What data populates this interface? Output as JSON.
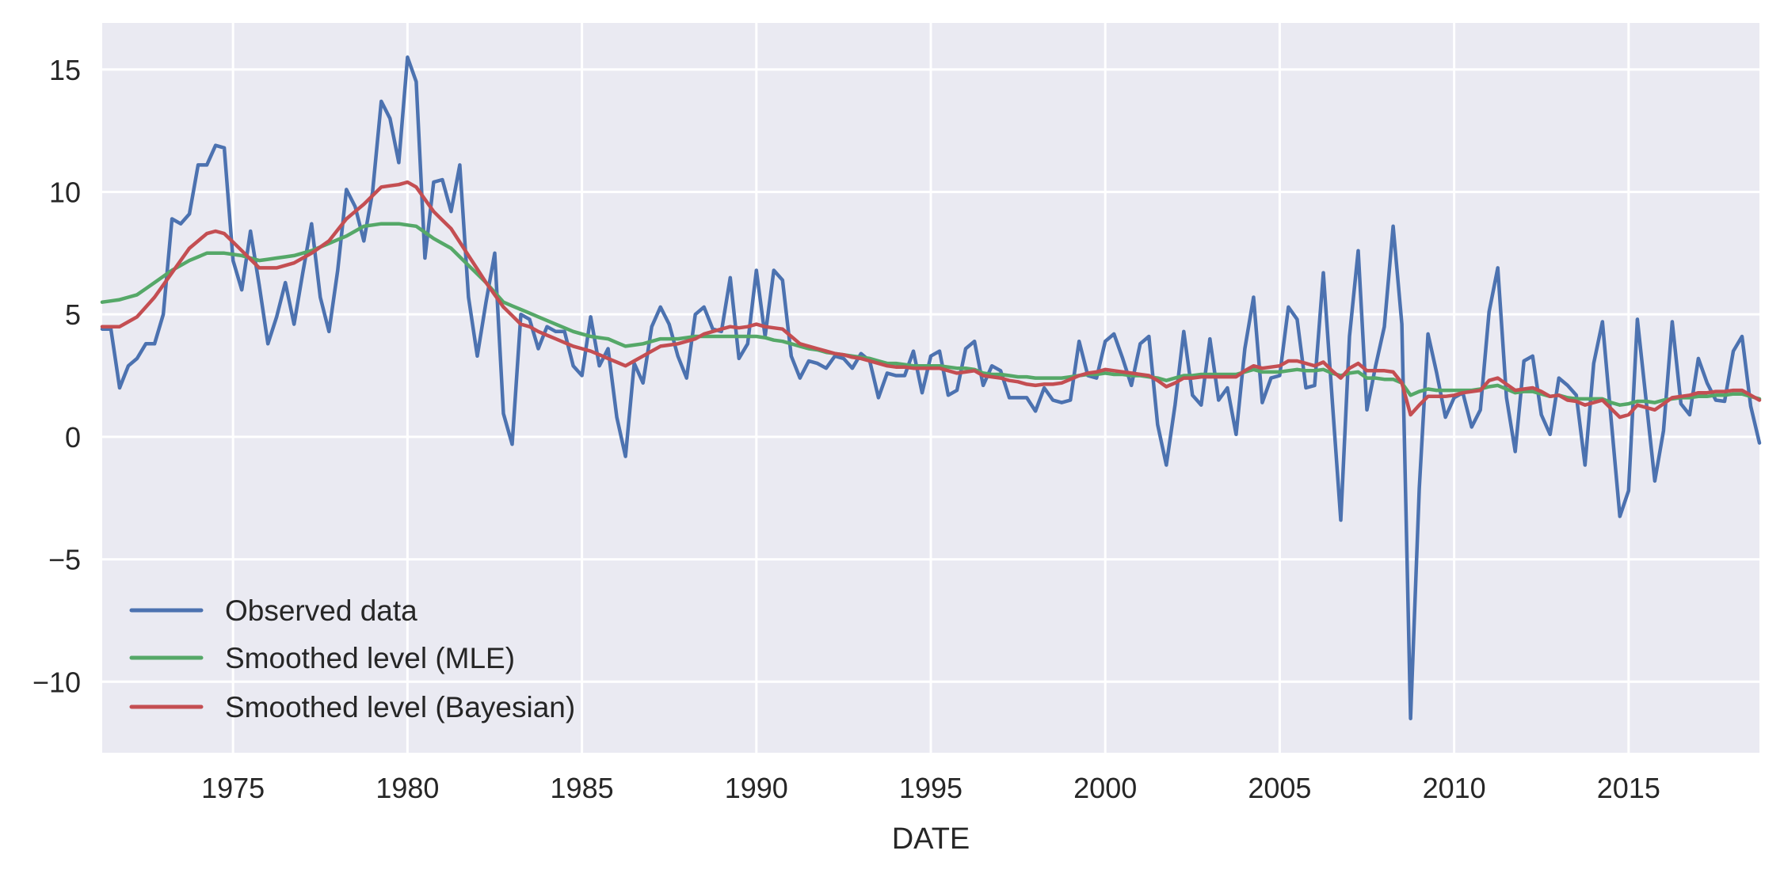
{
  "chart_data": {
    "type": "line",
    "title": "",
    "xlabel": "DATE",
    "ylabel": "",
    "grid": true,
    "background": "#eaeaf2",
    "legend_placement": "lower-left",
    "xlim": [
      "1971Q2",
      "2018Q4"
    ],
    "ylim": [
      -12.9,
      16.9
    ],
    "xticks": [
      1975,
      1980,
      1985,
      1990,
      1995,
      2000,
      2005,
      2010,
      2015
    ],
    "xtick_labels": [
      "1975",
      "1980",
      "1985",
      "1990",
      "1995",
      "2000",
      "2005",
      "2010",
      "2015"
    ],
    "yticks": [
      -10,
      -5,
      0,
      5,
      10,
      15
    ],
    "ytick_labels": [
      "−10",
      "−5",
      "0",
      "5",
      "10",
      "15"
    ],
    "x": [
      "1971Q2",
      "1971Q3",
      "1971Q4",
      "1972Q1",
      "1972Q2",
      "1972Q3",
      "1972Q4",
      "1973Q1",
      "1973Q2",
      "1973Q3",
      "1973Q4",
      "1974Q1",
      "1974Q2",
      "1974Q3",
      "1974Q4",
      "1975Q1",
      "1975Q2",
      "1975Q3",
      "1975Q4",
      "1976Q1",
      "1976Q2",
      "1976Q3",
      "1976Q4",
      "1977Q1",
      "1977Q2",
      "1977Q3",
      "1977Q4",
      "1978Q1",
      "1978Q2",
      "1978Q3",
      "1978Q4",
      "1979Q1",
      "1979Q2",
      "1979Q3",
      "1979Q4",
      "1980Q1",
      "1980Q2",
      "1980Q3",
      "1980Q4",
      "1981Q1",
      "1981Q2",
      "1981Q3",
      "1981Q4",
      "1982Q1",
      "1982Q2",
      "1982Q3",
      "1982Q4",
      "1983Q1",
      "1983Q2",
      "1983Q3",
      "1983Q4",
      "1984Q1",
      "1984Q2",
      "1984Q3",
      "1984Q4",
      "1985Q1",
      "1985Q2",
      "1985Q3",
      "1985Q4",
      "1986Q1",
      "1986Q2",
      "1986Q3",
      "1986Q4",
      "1987Q1",
      "1987Q2",
      "1987Q3",
      "1987Q4",
      "1988Q1",
      "1988Q2",
      "1988Q3",
      "1988Q4",
      "1989Q1",
      "1989Q2",
      "1989Q3",
      "1989Q4",
      "1990Q1",
      "1990Q2",
      "1990Q3",
      "1990Q4",
      "1991Q1",
      "1991Q2",
      "1991Q3",
      "1991Q4",
      "1992Q1",
      "1992Q2",
      "1992Q3",
      "1992Q4",
      "1993Q1",
      "1993Q2",
      "1993Q3",
      "1993Q4",
      "1994Q1",
      "1994Q2",
      "1994Q3",
      "1994Q4",
      "1995Q1",
      "1995Q2",
      "1995Q3",
      "1995Q4",
      "1996Q1",
      "1996Q2",
      "1996Q3",
      "1996Q4",
      "1997Q1",
      "1997Q2",
      "1997Q3",
      "1997Q4",
      "1998Q1",
      "1998Q2",
      "1998Q3",
      "1998Q4",
      "1999Q1",
      "1999Q2",
      "1999Q3",
      "1999Q4",
      "2000Q1",
      "2000Q2",
      "2000Q3",
      "2000Q4",
      "2001Q1",
      "2001Q2",
      "2001Q3",
      "2001Q4",
      "2002Q1",
      "2002Q2",
      "2002Q3",
      "2002Q4",
      "2003Q1",
      "2003Q2",
      "2003Q3",
      "2003Q4",
      "2004Q1",
      "2004Q2",
      "2004Q3",
      "2004Q4",
      "2005Q1",
      "2005Q2",
      "2005Q3",
      "2005Q4",
      "2006Q1",
      "2006Q2",
      "2006Q3",
      "2006Q4",
      "2007Q1",
      "2007Q2",
      "2007Q3",
      "2007Q4",
      "2008Q1",
      "2008Q2",
      "2008Q3",
      "2008Q4",
      "2009Q1",
      "2009Q2",
      "2009Q3",
      "2009Q4",
      "2010Q1",
      "2010Q2",
      "2010Q3",
      "2010Q4",
      "2011Q1",
      "2011Q2",
      "2011Q3",
      "2011Q4",
      "2012Q1",
      "2012Q2",
      "2012Q3",
      "2012Q4",
      "2013Q1",
      "2013Q2",
      "2013Q3",
      "2013Q4",
      "2014Q1",
      "2014Q2",
      "2014Q3",
      "2014Q4",
      "2015Q1",
      "2015Q2",
      "2015Q3",
      "2015Q4",
      "2016Q1",
      "2016Q2",
      "2016Q3",
      "2016Q4",
      "2017Q1",
      "2017Q2",
      "2017Q3",
      "2017Q4",
      "2018Q1",
      "2018Q2",
      "2018Q3",
      "2018Q4"
    ],
    "series": [
      {
        "name": "Observed data",
        "color": "#4c72b0",
        "values": [
          4.4,
          4.4,
          2.0,
          2.9,
          3.2,
          3.8,
          3.8,
          5.0,
          8.9,
          8.7,
          9.1,
          11.1,
          11.1,
          11.9,
          11.8,
          7.2,
          6.0,
          8.4,
          6.2,
          3.8,
          4.9,
          6.3,
          4.6,
          6.7,
          8.7,
          5.7,
          4.3,
          6.8,
          10.1,
          9.4,
          8.0,
          10.0,
          13.7,
          13.0,
          11.2,
          15.5,
          14.5,
          7.3,
          10.4,
          10.5,
          9.2,
          11.1,
          5.7,
          3.3,
          5.5,
          7.5,
          0.95,
          -0.3,
          5.0,
          4.8,
          3.6,
          4.5,
          4.3,
          4.3,
          2.9,
          2.5,
          4.9,
          2.9,
          3.6,
          0.8,
          -0.8,
          3.0,
          2.2,
          4.5,
          5.3,
          4.6,
          3.3,
          2.4,
          5.0,
          5.3,
          4.4,
          4.3,
          6.5,
          3.2,
          3.8,
          6.8,
          4.1,
          6.8,
          6.4,
          3.3,
          2.4,
          3.1,
          3.0,
          2.8,
          3.3,
          3.2,
          2.8,
          3.4,
          3.1,
          1.6,
          2.6,
          2.5,
          2.5,
          3.5,
          1.8,
          3.3,
          3.5,
          1.7,
          1.9,
          3.6,
          3.9,
          2.1,
          2.9,
          2.7,
          1.6,
          1.6,
          1.6,
          1.05,
          2.0,
          1.5,
          1.4,
          1.5,
          3.9,
          2.5,
          2.4,
          3.9,
          4.2,
          3.2,
          2.1,
          3.8,
          4.1,
          0.5,
          -1.15,
          1.3,
          4.3,
          1.7,
          1.3,
          4.0,
          1.5,
          2.0,
          0.1,
          3.6,
          5.7,
          1.4,
          2.4,
          2.5,
          5.3,
          4.8,
          2.0,
          2.1,
          6.7,
          1.6,
          -3.4,
          4.1,
          7.6,
          1.1,
          2.9,
          4.5,
          8.6,
          4.6,
          -11.5,
          -2.1,
          4.2,
          2.6,
          0.8,
          1.6,
          1.8,
          0.4,
          1.1,
          5.1,
          6.9,
          1.6,
          -0.6,
          3.1,
          3.3,
          0.9,
          0.1,
          2.4,
          2.1,
          1.7,
          -1.15,
          3.0,
          4.7,
          0.7,
          -3.25,
          -2.2,
          4.8,
          1.5,
          -1.8,
          0.25,
          4.7,
          1.35,
          0.9,
          3.2,
          2.2,
          1.5,
          1.45,
          3.5,
          4.1,
          1.25,
          -0.25
        ]
      },
      {
        "name": "Smoothed level (MLE)",
        "color": "#55a868",
        "values": [
          5.5,
          5.55,
          5.6,
          5.7,
          5.8,
          6.05,
          6.3,
          6.55,
          6.8,
          7.0,
          7.2,
          7.35,
          7.5,
          7.5,
          7.5,
          7.45,
          7.4,
          7.3,
          7.2,
          7.25,
          7.3,
          7.35,
          7.4,
          7.5,
          7.6,
          7.75,
          7.9,
          8.05,
          8.2,
          8.4,
          8.6,
          8.65,
          8.7,
          8.7,
          8.7,
          8.65,
          8.6,
          8.35,
          8.1,
          7.9,
          7.7,
          7.35,
          7.0,
          6.65,
          6.3,
          5.9,
          5.5,
          5.35,
          5.2,
          5.05,
          4.9,
          4.75,
          4.6,
          4.45,
          4.3,
          4.2,
          4.1,
          4.05,
          4.0,
          3.85,
          3.7,
          3.75,
          3.8,
          3.9,
          4.0,
          4.0,
          4.0,
          4.05,
          4.1,
          4.1,
          4.1,
          4.1,
          4.1,
          4.1,
          4.1,
          4.1,
          4.05,
          3.95,
          3.9,
          3.8,
          3.7,
          3.6,
          3.55,
          3.45,
          3.4,
          3.35,
          3.3,
          3.25,
          3.2,
          3.1,
          3.0,
          3.0,
          2.95,
          2.9,
          2.9,
          2.9,
          2.9,
          2.85,
          2.8,
          2.8,
          2.75,
          2.6,
          2.55,
          2.55,
          2.5,
          2.45,
          2.45,
          2.4,
          2.4,
          2.4,
          2.4,
          2.45,
          2.5,
          2.55,
          2.55,
          2.6,
          2.55,
          2.55,
          2.5,
          2.5,
          2.45,
          2.4,
          2.3,
          2.4,
          2.5,
          2.5,
          2.55,
          2.55,
          2.55,
          2.55,
          2.55,
          2.65,
          2.75,
          2.65,
          2.65,
          2.65,
          2.7,
          2.75,
          2.7,
          2.7,
          2.75,
          2.6,
          2.5,
          2.6,
          2.65,
          2.4,
          2.4,
          2.35,
          2.35,
          2.2,
          1.7,
          1.85,
          1.95,
          1.9,
          1.9,
          1.9,
          1.9,
          1.9,
          1.95,
          2.05,
          2.1,
          1.95,
          1.8,
          1.85,
          1.85,
          1.75,
          1.65,
          1.7,
          1.6,
          1.55,
          1.55,
          1.55,
          1.55,
          1.4,
          1.3,
          1.35,
          1.45,
          1.45,
          1.4,
          1.5,
          1.55,
          1.6,
          1.6,
          1.65,
          1.65,
          1.7,
          1.7,
          1.75,
          1.75,
          1.65,
          1.55
        ]
      },
      {
        "name": "Smoothed level (Bayesian)",
        "color": "#c44e52",
        "values": [
          4.5,
          4.5,
          4.5,
          4.7,
          4.9,
          5.3,
          5.7,
          6.2,
          6.7,
          7.2,
          7.7,
          8.0,
          8.3,
          8.4,
          8.3,
          7.95,
          7.6,
          7.25,
          6.9,
          6.9,
          6.9,
          7.0,
          7.1,
          7.3,
          7.5,
          7.75,
          8.0,
          8.45,
          8.9,
          9.2,
          9.5,
          9.85,
          10.2,
          10.25,
          10.3,
          10.4,
          10.2,
          9.7,
          9.2,
          8.85,
          8.5,
          7.95,
          7.4,
          6.85,
          6.3,
          5.8,
          5.3,
          4.95,
          4.6,
          4.5,
          4.3,
          4.15,
          4.0,
          3.85,
          3.7,
          3.6,
          3.5,
          3.35,
          3.2,
          3.05,
          2.9,
          3.1,
          3.3,
          3.5,
          3.7,
          3.75,
          3.8,
          3.9,
          4.0,
          4.2,
          4.3,
          4.4,
          4.5,
          4.45,
          4.5,
          4.6,
          4.5,
          4.45,
          4.4,
          4.1,
          3.8,
          3.7,
          3.6,
          3.5,
          3.4,
          3.35,
          3.25,
          3.2,
          3.1,
          3.0,
          2.9,
          2.85,
          2.85,
          2.8,
          2.8,
          2.8,
          2.8,
          2.7,
          2.6,
          2.65,
          2.7,
          2.5,
          2.45,
          2.4,
          2.3,
          2.25,
          2.15,
          2.1,
          2.15,
          2.15,
          2.2,
          2.35,
          2.5,
          2.6,
          2.65,
          2.75,
          2.7,
          2.65,
          2.6,
          2.55,
          2.5,
          2.3,
          2.05,
          2.2,
          2.4,
          2.4,
          2.45,
          2.45,
          2.45,
          2.45,
          2.45,
          2.7,
          2.9,
          2.8,
          2.85,
          2.9,
          3.1,
          3.1,
          3.0,
          2.9,
          3.05,
          2.7,
          2.4,
          2.8,
          3.0,
          2.7,
          2.7,
          2.7,
          2.65,
          2.2,
          0.9,
          1.3,
          1.65,
          1.65,
          1.65,
          1.7,
          1.8,
          1.85,
          1.9,
          2.3,
          2.4,
          2.15,
          1.9,
          1.95,
          2.0,
          1.85,
          1.65,
          1.7,
          1.5,
          1.45,
          1.3,
          1.4,
          1.5,
          1.15,
          0.8,
          0.9,
          1.3,
          1.2,
          1.1,
          1.35,
          1.6,
          1.65,
          1.7,
          1.8,
          1.8,
          1.85,
          1.85,
          1.9,
          1.9,
          1.7,
          1.5
        ]
      }
    ]
  }
}
